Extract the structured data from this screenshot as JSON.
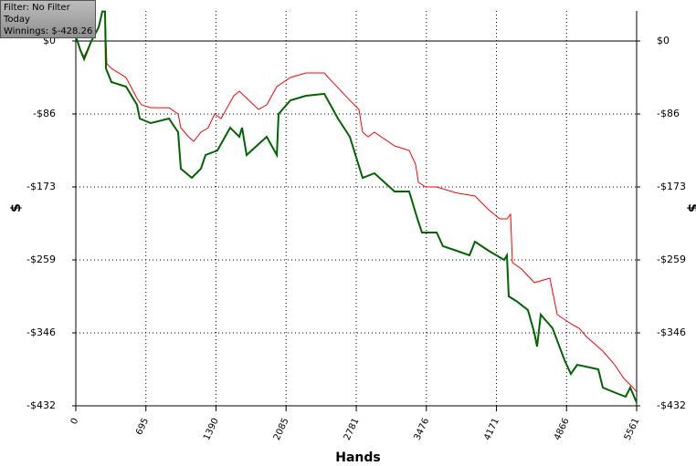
{
  "chart_data": {
    "type": "line",
    "info": {
      "filter": "Filter: No Filter",
      "period": "Today",
      "winnings": "Winnings: $-428.26"
    },
    "x_label": "Hands",
    "y_label": "$",
    "y2_label": "$",
    "xlim": [
      0,
      5561
    ],
    "xticks": [
      0,
      695,
      1390,
      2085,
      2781,
      3476,
      4171,
      4866,
      5561
    ],
    "ylim": [
      -432,
      35.6
    ],
    "yticks": [
      {
        "value": 0,
        "label": "$0"
      },
      {
        "value": -86.4,
        "label": "-$86"
      },
      {
        "value": -172.8,
        "label": "-$173"
      },
      {
        "value": -259.2,
        "label": "-$259"
      },
      {
        "value": -345.6,
        "label": "-$346"
      },
      {
        "value": -432,
        "label": "-$432"
      }
    ],
    "grid": true,
    "series": [
      {
        "color": "#ff0000",
        "x": [
          0,
          45,
          82,
          154,
          226,
          263,
          290,
          308,
          353,
          498,
          607,
          652,
          743,
          924,
          1014,
          1042,
          1114,
          1168,
          1241,
          1313,
          1377,
          1440,
          1567,
          1621,
          1811,
          1893,
          1993,
          2128,
          2282,
          2464,
          2517,
          2717,
          2808,
          2844,
          2898,
          2962,
          3161,
          3306,
          3369,
          3397,
          3469,
          3578,
          3777,
          3958,
          4094,
          4203,
          4275,
          4311,
          4329,
          4420,
          4547,
          4701,
          4774,
          4909,
          4991,
          5063,
          5226,
          5344,
          5434,
          5525,
          5561
        ],
        "values": [
          5.4,
          -10.8,
          -18.4,
          0,
          16.2,
          35,
          35,
          -27,
          -32.4,
          -43.2,
          -68,
          -75.6,
          -79,
          -79,
          -86.4,
          -102.6,
          -113,
          -118.8,
          -108,
          -102.6,
          -86.4,
          -91.8,
          -64.8,
          -59.4,
          -81,
          -75.6,
          -54,
          -43.2,
          -37.8,
          -37.8,
          -45,
          -70.2,
          -81,
          -108,
          -113.4,
          -108,
          -124.2,
          -129.6,
          -146,
          -167.4,
          -172.8,
          -172.8,
          -180,
          -183.6,
          -199.8,
          -210.6,
          -210.6,
          -205.2,
          -262.4,
          -270,
          -286.2,
          -280.8,
          -324,
          -334.8,
          -340.2,
          -350,
          -367.2,
          -383.4,
          -399.6,
          -410.4,
          -415.8
        ]
      },
      {
        "color": "#006400",
        "x": [
          0,
          45,
          82,
          154,
          226,
          263,
          290,
          299,
          353,
          498,
          607,
          634,
          743,
          924,
          1014,
          1042,
          1150,
          1241,
          1286,
          1404,
          1531,
          1621,
          1648,
          1694,
          1893,
          1993,
          2011,
          2128,
          2282,
          2464,
          2599,
          2717,
          2844,
          2962,
          3161,
          3306,
          3387,
          3433,
          3578,
          3641,
          3777,
          3904,
          3958,
          4094,
          4248,
          4275,
          4293,
          4366,
          4483,
          4547,
          4574,
          4610,
          4728,
          4846,
          4909,
          4972,
          5181,
          5226,
          5335,
          5452,
          5498,
          5561
        ],
        "values": [
          5.4,
          -10.8,
          -21.6,
          0,
          16.2,
          35,
          35,
          -32.4,
          -48.6,
          -54,
          -75.6,
          -91.8,
          -97.2,
          -91.8,
          -108,
          -151.2,
          -162,
          -151.2,
          -135,
          -129.6,
          -102.6,
          -113.4,
          -102.6,
          -135,
          -113.4,
          -135,
          -86.4,
          -70.2,
          -64.8,
          -62.6,
          -91.8,
          -113.4,
          -162,
          -156.6,
          -178.2,
          -178.2,
          -210.6,
          -226.8,
          -226.8,
          -243,
          -248.4,
          -253.8,
          -237.6,
          -248.4,
          -259.2,
          -253.8,
          -302.4,
          -307.8,
          -318.6,
          -345.6,
          -361.8,
          -324,
          -340.2,
          -378,
          -394.2,
          -383.4,
          -388.8,
          -410.4,
          -415.8,
          -421.2,
          -410.4,
          -428.26
        ]
      }
    ]
  }
}
